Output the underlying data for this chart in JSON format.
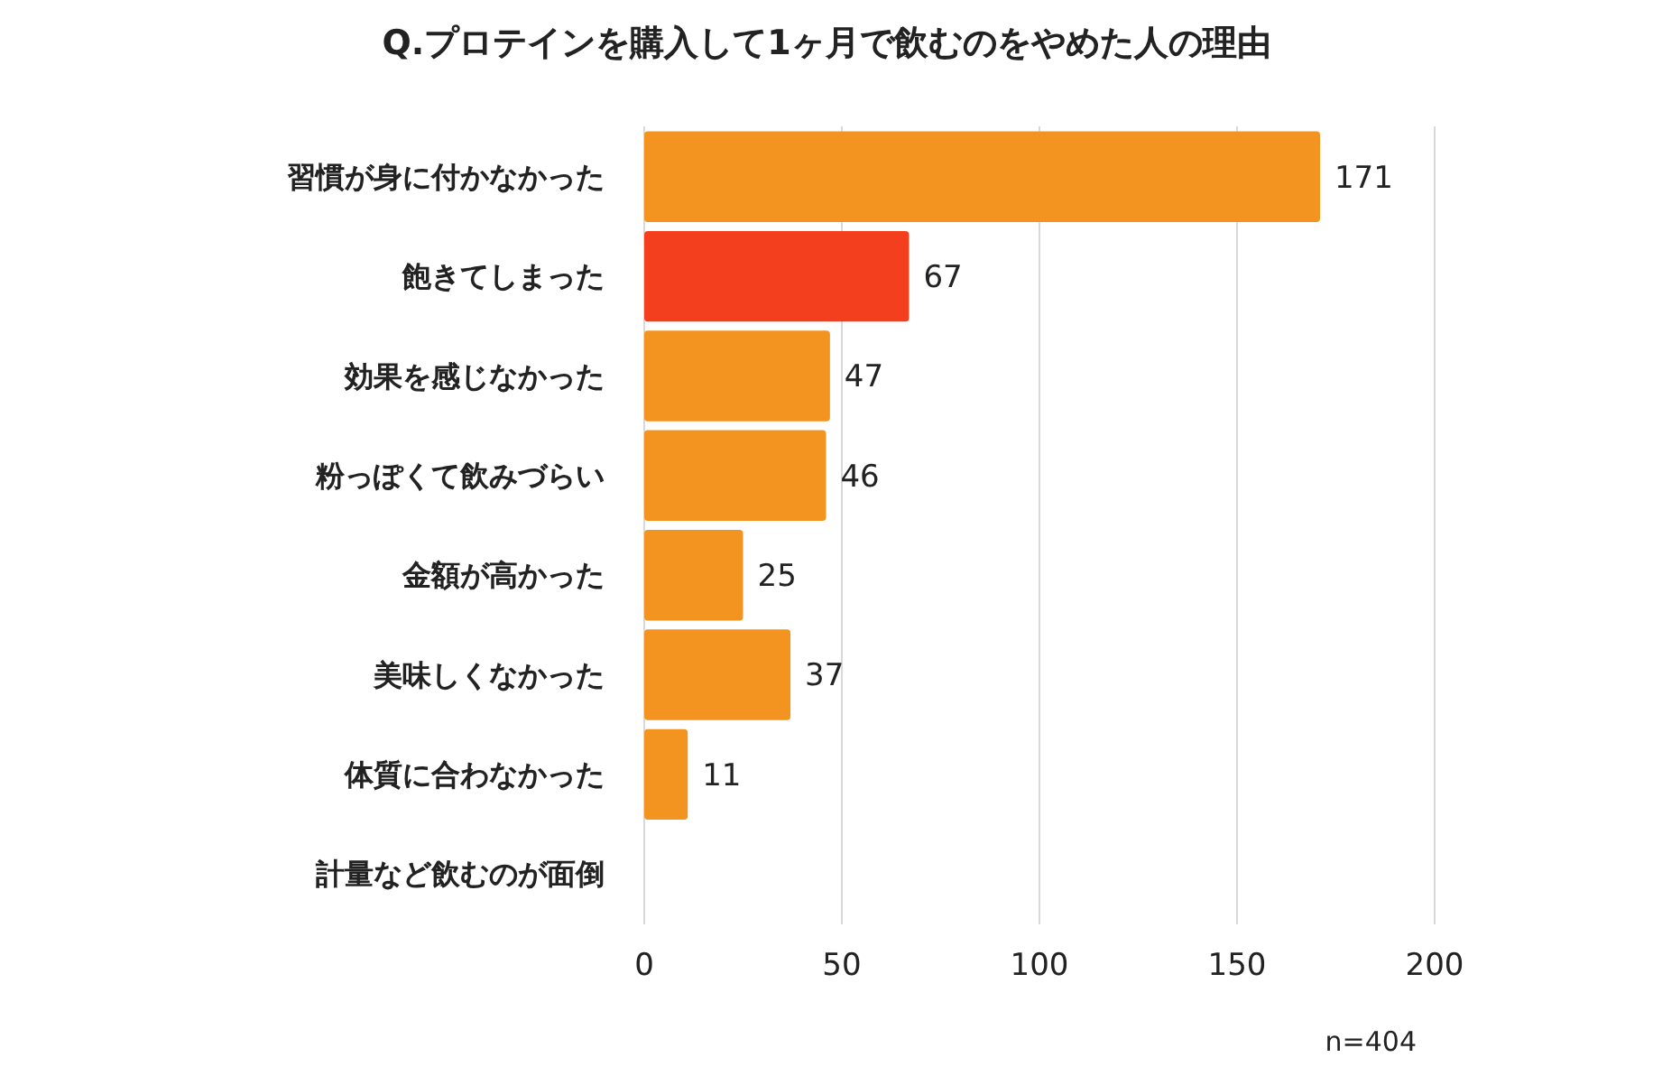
{
  "chart_data": {
    "type": "bar",
    "orientation": "horizontal",
    "title": "Q.プロテインを購入して1ヶ月で飲むのをやめた人の理由",
    "categories": [
      "習慣が身に付かなかった",
      "飽きてしまった",
      "効果を感じなかった",
      "粉っぽくて飲みづらい",
      "金額が高かった",
      "美味しくなかった",
      "体質に合わなかった",
      "計量など飲むのが面倒"
    ],
    "values": [
      171,
      67,
      47,
      46,
      25,
      37,
      11,
      0
    ],
    "colors": [
      "#f39320",
      "#f43f1e",
      "#f39320",
      "#f39320",
      "#f39320",
      "#f39320",
      "#f39320",
      "#f39320"
    ],
    "value_labels": [
      "171",
      "67",
      "47",
      "46",
      "25",
      "37",
      "11",
      null
    ],
    "xlim": [
      0,
      200
    ],
    "xticks": [
      0,
      50,
      100,
      150,
      200
    ],
    "grid": "x",
    "annotations": [
      "n=404"
    ]
  }
}
